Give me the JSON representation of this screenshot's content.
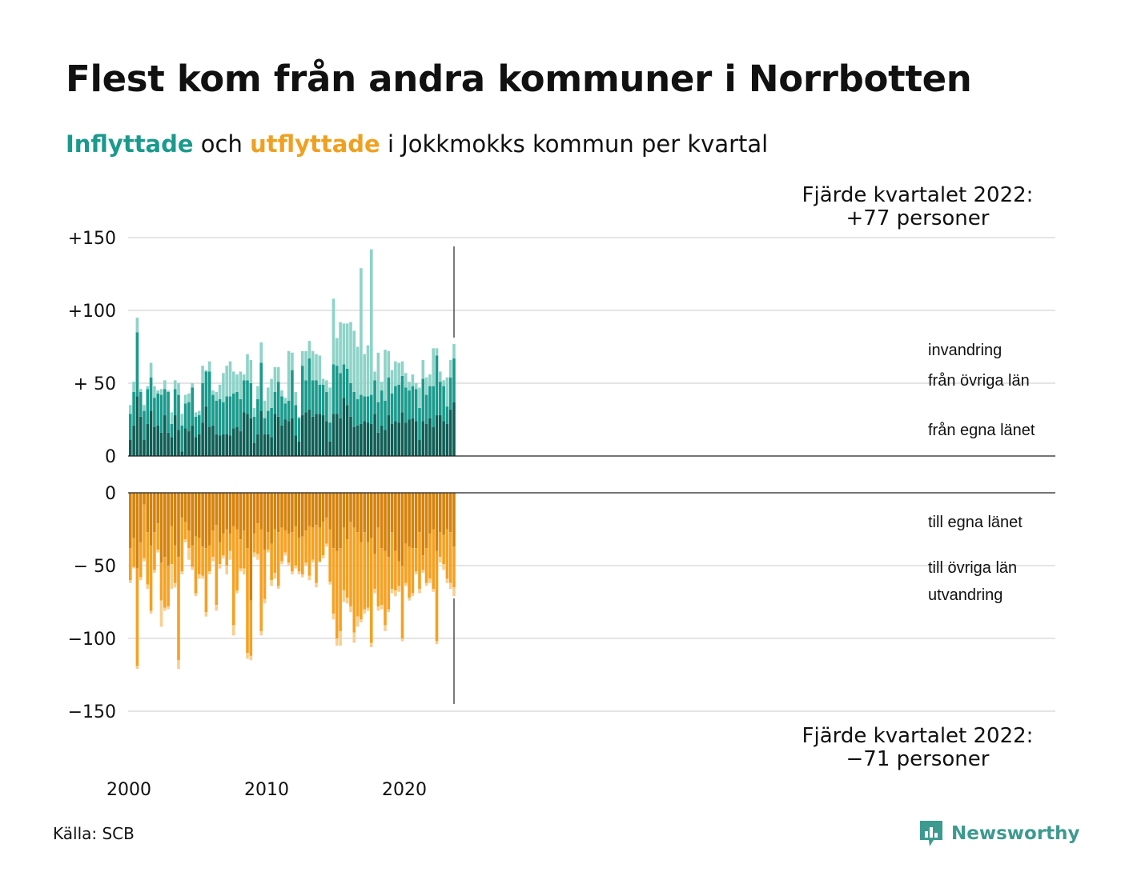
{
  "header": {
    "title": "Flest kom från andra kommuner i Norrbotten",
    "subtitle_in": "Inflyttade",
    "subtitle_mid": "och",
    "subtitle_out": "utflyttade",
    "subtitle_rest": "i Jokkmokks kommun per kvartal"
  },
  "footer": {
    "source": "Källa: SCB",
    "brand": "Newsworthy"
  },
  "colors": {
    "in_dark": "#0f5e55",
    "in_mid": "#1a9a8c",
    "in_light": "#8dd3c8",
    "out_dark": "#d4820d",
    "out_mid": "#f5a122",
    "out_light": "#f8cf8e"
  },
  "icons": {
    "logo": "chart-bubble-icon"
  },
  "chart_data": {
    "type": "bar",
    "stacked": true,
    "x_start": 2000,
    "period": "quarter",
    "x_ticks": [
      2000,
      2010,
      2020
    ],
    "y_ticks_in": [
      "+150",
      "+100",
      "+ 50",
      "0"
    ],
    "y_ticks_out": [
      "0",
      "− 50",
      "−100",
      "−150"
    ],
    "ylim_in": [
      0,
      150
    ],
    "ylim_out": [
      -150,
      0
    ],
    "grid": true,
    "annotation_top": [
      "Fjärde kvartalet 2022:",
      "+77 personer"
    ],
    "annotation_bottom": [
      "Fjärde kvartalet 2022:",
      "−71 personer"
    ],
    "series_in": [
      {
        "name": "från egna länet",
        "values": [
          11,
          21,
          41,
          27,
          11,
          22,
          31,
          20,
          21,
          16,
          28,
          16,
          13,
          28,
          18,
          3,
          19,
          17,
          21,
          13,
          15,
          23,
          34,
          20,
          21,
          15,
          14,
          15,
          15,
          14,
          19,
          20,
          17,
          30,
          29,
          26,
          9,
          15,
          31,
          15,
          15,
          13,
          29,
          27,
          21,
          25,
          24,
          26,
          14,
          10,
          28,
          30,
          32,
          27,
          29,
          29,
          28,
          24,
          10,
          29,
          29,
          26,
          40,
          35,
          27,
          20,
          21,
          22,
          24,
          23,
          22,
          29,
          16,
          21,
          18,
          28,
          22,
          24,
          23,
          30,
          23,
          25,
          26,
          24,
          11,
          24,
          22,
          26,
          20,
          28,
          28,
          24,
          22,
          32,
          37
        ]
      },
      {
        "name": "från övriga län",
        "values": [
          18,
          23,
          44,
          17,
          20,
          24,
          23,
          20,
          22,
          26,
          18,
          28,
          9,
          18,
          24,
          18,
          17,
          20,
          26,
          14,
          13,
          27,
          24,
          38,
          21,
          23,
          25,
          22,
          26,
          27,
          24,
          24,
          22,
          22,
          23,
          24,
          18,
          24,
          33,
          11,
          16,
          20,
          15,
          24,
          20,
          11,
          14,
          33,
          21,
          16,
          34,
          22,
          35,
          25,
          23,
          20,
          21,
          20,
          13,
          34,
          33,
          31,
          23,
          25,
          23,
          24,
          18,
          20,
          17,
          18,
          20,
          23,
          21,
          24,
          20,
          26,
          21,
          24,
          26,
          25,
          24,
          20,
          22,
          22,
          22,
          29,
          20,
          22,
          28,
          41,
          23,
          24,
          12,
          22,
          30
        ]
      },
      {
        "name": "invandring",
        "values": [
          6,
          7,
          10,
          2,
          4,
          2,
          10,
          8,
          2,
          4,
          6,
          1,
          8,
          6,
          8,
          8,
          6,
          6,
          3,
          3,
          3,
          12,
          1,
          7,
          3,
          6,
          10,
          20,
          21,
          24,
          15,
          12,
          19,
          4,
          18,
          16,
          6,
          9,
          14,
          12,
          16,
          20,
          17,
          10,
          4,
          4,
          34,
          12,
          9,
          1,
          10,
          20,
          12,
          20,
          18,
          20,
          4,
          8,
          24,
          45,
          19,
          35,
          28,
          31,
          42,
          42,
          36,
          87,
          29,
          35,
          100,
          6,
          34,
          6,
          35,
          18,
          16,
          17,
          15,
          10,
          10,
          6,
          8,
          4,
          14,
          13,
          12,
          8,
          26,
          5,
          7,
          4,
          20,
          12,
          10
        ]
      }
    ],
    "series_out": [
      {
        "name": "till egna länet",
        "values": [
          -38,
          -31,
          -52,
          -34,
          -8,
          -27,
          -36,
          -27,
          -21,
          -48,
          -44,
          -50,
          -23,
          -36,
          -44,
          -17,
          -20,
          -26,
          -36,
          -30,
          -31,
          -37,
          -38,
          -36,
          -26,
          -22,
          -34,
          -28,
          -25,
          -28,
          -23,
          -25,
          -32,
          -26,
          -38,
          -74,
          -28,
          -21,
          -25,
          -39,
          -27,
          -35,
          -25,
          -27,
          -24,
          -26,
          -28,
          -27,
          -23,
          -31,
          -30,
          -26,
          -23,
          -24,
          -22,
          -24,
          -20,
          -17,
          -25,
          -38,
          -40,
          -38,
          -24,
          -32,
          -20,
          -24,
          -27,
          -34,
          -27,
          -34,
          -31,
          -42,
          -24,
          -38,
          -40,
          -44,
          -27,
          -40,
          -47,
          -50,
          -35,
          -37,
          -38,
          -38,
          -27,
          -43,
          -38,
          -28,
          -25,
          -40,
          -27,
          -29,
          -25,
          -27,
          -37
        ]
      },
      {
        "name": "till övriga län",
        "values": [
          -22,
          -20,
          -67,
          -24,
          -37,
          -36,
          -45,
          -26,
          -18,
          -26,
          -35,
          -28,
          -26,
          -26,
          -71,
          -37,
          -12,
          -12,
          -15,
          -39,
          -25,
          -20,
          -44,
          -18,
          -18,
          -55,
          -15,
          -15,
          -25,
          -12,
          -68,
          -42,
          -20,
          -26,
          -72,
          -38,
          -13,
          -21,
          -70,
          -34,
          -12,
          -25,
          -30,
          -37,
          -23,
          -15,
          -20,
          -27,
          -27,
          -23,
          -26,
          -22,
          -34,
          -22,
          -40,
          -23,
          -23,
          -18,
          -36,
          -45,
          -60,
          -57,
          -43,
          -40,
          -58,
          -72,
          -58,
          -53,
          -53,
          -45,
          -72,
          -24,
          -54,
          -39,
          -51,
          -36,
          -39,
          -27,
          -17,
          -50,
          -27,
          -35,
          -31,
          -16,
          -39,
          -10,
          -24,
          -31,
          -41,
          -62,
          -17,
          -20,
          -34,
          -35,
          -28
        ]
      },
      {
        "name": "utvandring",
        "values": [
          -2,
          -1,
          -2,
          -2,
          -2,
          -3,
          -2,
          -2,
          -2,
          -18,
          -2,
          -2,
          -17,
          -3,
          -6,
          -2,
          -2,
          -8,
          -2,
          -2,
          -3,
          -2,
          -3,
          -2,
          -3,
          -4,
          -3,
          -2,
          -6,
          -6,
          -7,
          -2,
          -2,
          -4,
          -4,
          -3,
          -3,
          -4,
          -3,
          -3,
          -2,
          -4,
          -4,
          -2,
          -2,
          -2,
          -2,
          -2,
          -2,
          -2,
          -2,
          -2,
          -3,
          -2,
          -3,
          -1,
          -2,
          -2,
          -2,
          -4,
          -5,
          -10,
          -8,
          -4,
          -4,
          -7,
          -7,
          -2,
          -3,
          -2,
          -3,
          -3,
          -3,
          -3,
          -4,
          -2,
          -3,
          -4,
          -4,
          -2,
          -2,
          -2,
          -2,
          -2,
          -3,
          -2,
          -2,
          -3,
          -2,
          -2,
          -4,
          -4,
          -3,
          -4,
          -6
        ]
      }
    ]
  }
}
